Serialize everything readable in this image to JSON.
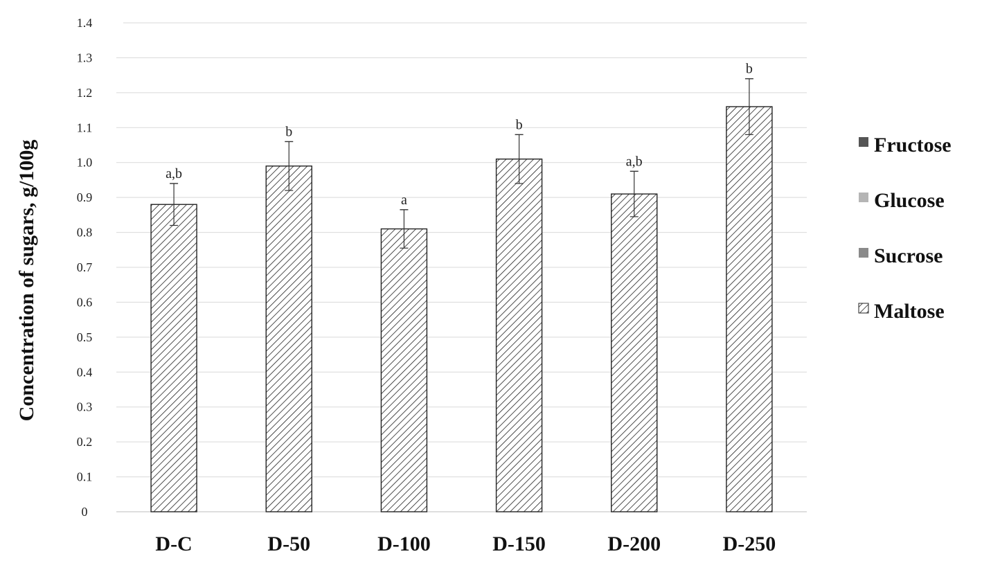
{
  "chart_data": {
    "type": "bar",
    "title": "",
    "xlabel": "",
    "ylabel": "Concentration of sugars, g/100g",
    "ylim": [
      0,
      1.4
    ],
    "yticks": [
      "0",
      "0.1",
      "0.2",
      "0.3",
      "0.4",
      "0.5",
      "0.6",
      "0.7",
      "0.8",
      "0.9",
      "1.0",
      "1.1",
      "1.2",
      "1.3",
      "1.4"
    ],
    "grid": true,
    "legend_position": "right",
    "categories": [
      "D-C",
      "D-50",
      "D-100",
      "D-150",
      "D-200",
      "D-250"
    ],
    "legend": [
      {
        "name": "Fructose",
        "color": "#555555",
        "pattern": "solid"
      },
      {
        "name": "Glucose",
        "color": "#b5b5b5",
        "pattern": "solid"
      },
      {
        "name": "Sucrose",
        "color": "#8a8a8a",
        "pattern": "solid"
      },
      {
        "name": "Maltose",
        "color": "#ffffff",
        "pattern": "hatch"
      }
    ],
    "series": [
      {
        "name": "Maltose",
        "values": [
          0.88,
          0.99,
          0.81,
          1.01,
          0.91,
          1.16
        ],
        "errors": [
          0.06,
          0.07,
          0.055,
          0.07,
          0.065,
          0.08
        ],
        "significance": [
          "a,b",
          "b",
          "a",
          "b",
          "a,b",
          "b"
        ]
      }
    ]
  }
}
